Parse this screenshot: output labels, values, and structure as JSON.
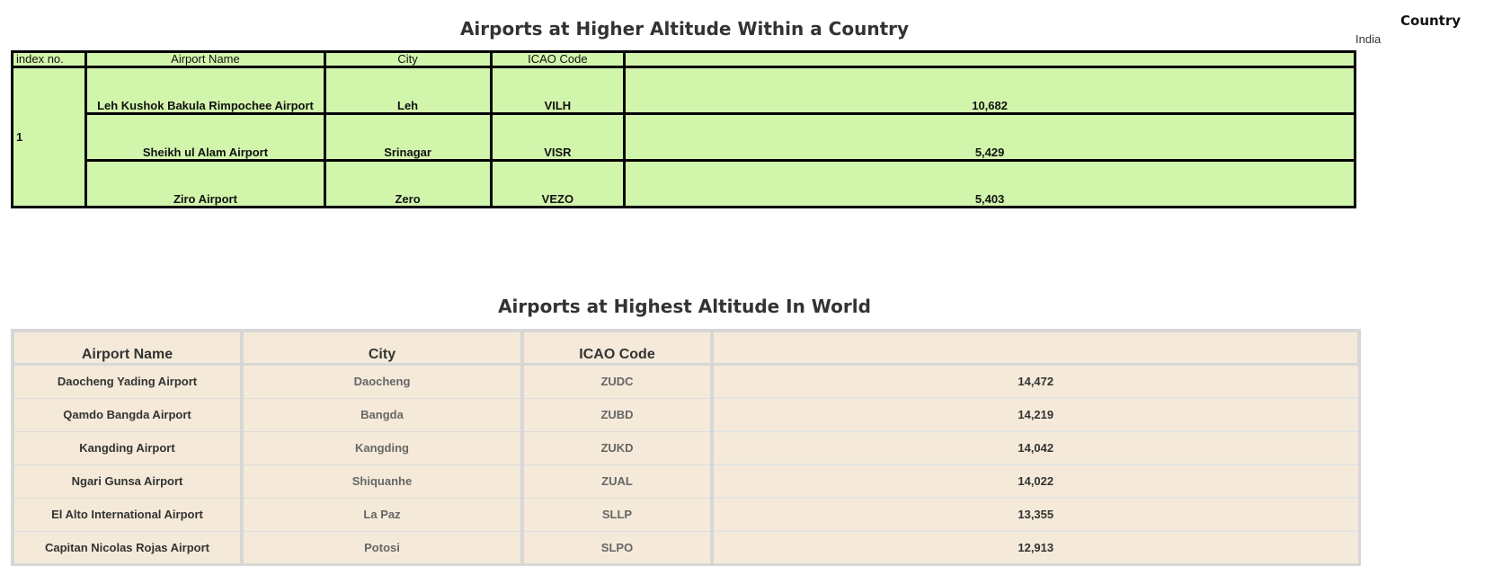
{
  "top": {
    "title": "Airports at Higher Altitude Within a Country",
    "headers": [
      "index no.",
      "Airport Name",
      "City",
      "ICAO Code",
      ""
    ],
    "index_value": "1",
    "rows": [
      {
        "name": "Leh Kushok Bakula Rimpochee Airport",
        "city": "Leh",
        "icao": "VILH",
        "altitude": "10,682"
      },
      {
        "name": "Sheikh ul Alam Airport",
        "city": "Srinagar",
        "icao": "VISR",
        "altitude": "5,429"
      },
      {
        "name": "Ziro Airport",
        "city": "Zero",
        "icao": "VEZO",
        "altitude": "5,403"
      }
    ]
  },
  "world": {
    "title": "Airports at Highest Altitude In World",
    "headers": [
      "Airport Name",
      "City",
      "ICAO Code",
      ""
    ],
    "rows": [
      {
        "name": "Daocheng Yading Airport",
        "city": "Daocheng",
        "icao": "ZUDC",
        "altitude": "14,472"
      },
      {
        "name": "Qamdo Bangda Airport",
        "city": "Bangda",
        "icao": "ZUBD",
        "altitude": "14,219"
      },
      {
        "name": "Kangding Airport",
        "city": "Kangding",
        "icao": "ZUKD",
        "altitude": "14,042"
      },
      {
        "name": "Ngari Gunsa Airport",
        "city": "Shiquanhe",
        "icao": "ZUAL",
        "altitude": "14,022"
      },
      {
        "name": "El Alto International Airport",
        "city": "La Paz",
        "icao": "SLLP",
        "altitude": "13,355"
      },
      {
        "name": "Capitan Nicolas Rojas Airport",
        "city": "Potosi",
        "icao": "SLPO",
        "altitude": "12,913"
      }
    ]
  },
  "filter": {
    "title": "Country",
    "value": "India"
  },
  "colors": {
    "top_table_bg": "#d2f5ac",
    "world_table_bg": "#f5ead9"
  }
}
